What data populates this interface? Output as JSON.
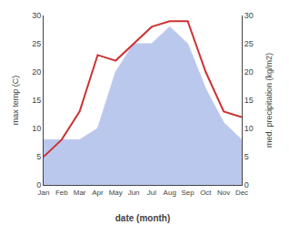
{
  "chart_data": {
    "type": "line",
    "categories": [
      "Jan",
      "Feb",
      "Mar",
      "Apr",
      "May",
      "Jun",
      "Jul",
      "Aug",
      "Sep",
      "Oct",
      "Nov",
      "Dec"
    ],
    "series": [
      {
        "type": "area",
        "axis": "y2",
        "color": "#bbc8ee",
        "values": [
          8,
          8,
          8,
          10,
          20,
          25,
          25,
          28,
          25,
          17,
          11,
          8
        ]
      },
      {
        "type": "line",
        "color": "#cc3333",
        "values": [
          5,
          8,
          13,
          23,
          22,
          25,
          28,
          29,
          29,
          20,
          13,
          12
        ]
      }
    ],
    "xlabel": "date (month)",
    "ylabel": "max temp (C)",
    "y2label": "med. precipitation (kg/m2)",
    "ylim": [
      0,
      30
    ],
    "yticks": [
      0,
      5,
      10,
      15,
      20,
      25,
      30
    ],
    "y2lim": [
      0,
      30
    ],
    "y2ticks": [
      0,
      5,
      10,
      15,
      20,
      25,
      30
    ],
    "grid": false
  }
}
